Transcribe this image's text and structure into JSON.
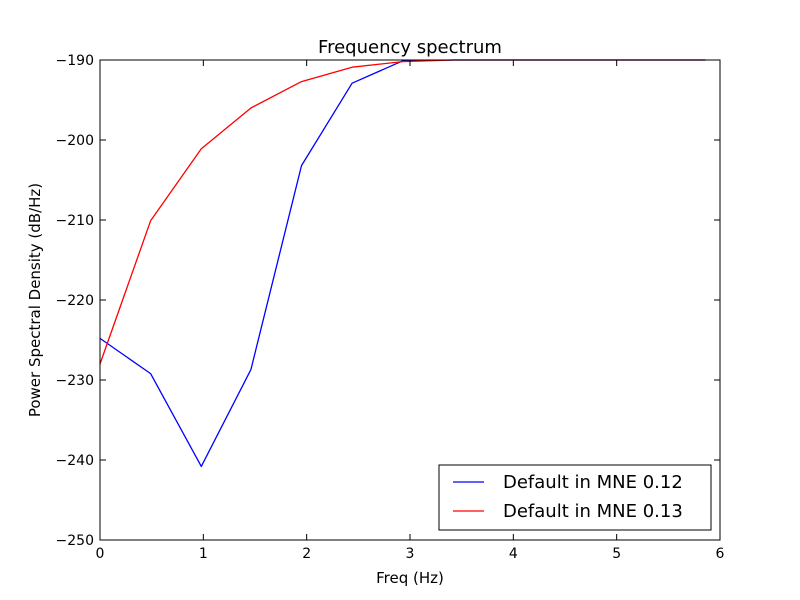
{
  "chart_data": {
    "type": "line",
    "title": "Frequency spectrum",
    "xlabel": "Freq (Hz)",
    "ylabel": "Power Spectral Density (dB/Hz)",
    "xlim": [
      0,
      6
    ],
    "ylim": [
      -250,
      -190
    ],
    "xticks": [
      0,
      1,
      2,
      3,
      4,
      5,
      6
    ],
    "xtick_labels": [
      "0",
      "1",
      "2",
      "3",
      "4",
      "5",
      "6"
    ],
    "yticks": [
      -250,
      -240,
      -230,
      -220,
      -210,
      -200,
      -190
    ],
    "ytick_labels": [
      "−250",
      "−240",
      "−230",
      "−220",
      "−210",
      "−200",
      "−190"
    ],
    "grid": false,
    "legend_position": "lower-right",
    "series": [
      {
        "name": "Default in MNE 0.12",
        "color": "#0000ff",
        "x": [
          0,
          0.49,
          0.98,
          1.46,
          1.95,
          2.44,
          2.93,
          3.42,
          3.9,
          4.39,
          4.88,
          5.37,
          5.86
        ],
        "y": [
          -224.8,
          -229.2,
          -240.8,
          -228.7,
          -203.2,
          -192.9,
          -190.1,
          -190.0,
          -190.0,
          -190.0,
          -190.0,
          -190.0,
          -190.0
        ]
      },
      {
        "name": "Default in MNE 0.13",
        "color": "#ff0000",
        "x": [
          0,
          0.49,
          0.98,
          1.46,
          1.95,
          2.44,
          2.93,
          3.42,
          3.9,
          4.39,
          4.88,
          5.37,
          5.86
        ],
        "y": [
          -228.0,
          -210.1,
          -201.1,
          -196.0,
          -192.7,
          -190.9,
          -190.2,
          -190.0,
          -190.0,
          -190.0,
          -190.0,
          -190.0,
          -190.0
        ]
      }
    ]
  }
}
